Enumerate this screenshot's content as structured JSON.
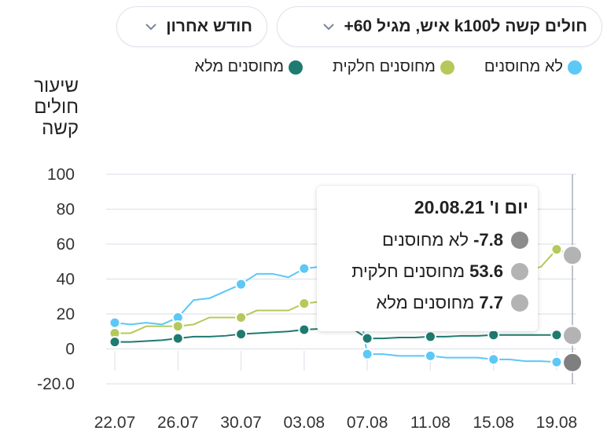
{
  "header": {
    "metric_dropdown": "חולים קשה לk100 איש, מגיל 60+",
    "period_dropdown": "חודש אחרון"
  },
  "colors": {
    "unvaccinated": "#5bc8f5",
    "partial": "#b5c95a",
    "full": "#1f7a70",
    "grid": "#dfe3ea"
  },
  "chart_data": {
    "type": "line",
    "ylabel": "שיעור\nחולים\nקשה",
    "xlabel": "",
    "ylim": [
      -20,
      100
    ],
    "y_ticks": [
      100,
      80,
      60,
      40,
      20,
      0,
      -20
    ],
    "y_tick_labels": [
      "100",
      "80",
      "60",
      "40",
      "20",
      "0",
      "-20.0"
    ],
    "x_tick_labels": [
      "22.07",
      "26.07",
      "30.07",
      "03.08",
      "07.08",
      "11.08",
      "15.08",
      "19.08"
    ],
    "x": [
      "22.07",
      "23.07",
      "24.07",
      "25.07",
      "26.07",
      "27.07",
      "28.07",
      "29.07",
      "30.07",
      "31.07",
      "01.08",
      "02.08",
      "03.08",
      "04.08",
      "05.08",
      "06.08",
      "07.08",
      "08.08",
      "09.08",
      "10.08",
      "11.08",
      "12.08",
      "13.08",
      "14.08",
      "15.08",
      "16.08",
      "17.08",
      "18.08",
      "19.08",
      "20.08"
    ],
    "marker_indices": [
      0,
      4,
      8,
      12,
      16,
      20,
      24,
      28
    ],
    "series": [
      {
        "name": "לא מחוסנים",
        "color": "#5bc8f5",
        "values": [
          15,
          14,
          15,
          14,
          18,
          28,
          29,
          33,
          37,
          43,
          43,
          41,
          46,
          47,
          49,
          49,
          -3,
          -3,
          -4,
          -4,
          -4,
          -5,
          -5,
          -5,
          -6,
          -6,
          -7,
          -7,
          -7.5,
          -7.8
        ]
      },
      {
        "name": "מחוסנים חלקית",
        "color": "#b5c95a",
        "values": [
          9,
          9,
          13,
          13,
          13,
          14,
          18,
          18,
          18,
          22,
          22,
          22,
          26,
          27,
          28,
          29,
          30,
          32,
          33,
          34,
          35,
          37,
          38,
          40,
          42,
          43,
          45,
          47,
          57,
          53.6
        ]
      },
      {
        "name": "מחוסנים מלא",
        "color": "#1f7a70",
        "values": [
          4,
          4,
          4.5,
          5,
          6,
          7,
          7,
          7.5,
          8.5,
          9,
          9.5,
          10,
          11,
          11.5,
          12,
          12,
          6,
          6,
          6.5,
          6.5,
          7,
          7,
          7.5,
          7.5,
          8,
          8,
          8,
          8,
          8,
          7.7
        ]
      }
    ]
  },
  "tooltip": {
    "title": "יום ו' 20.08.21",
    "rows": [
      {
        "value": "7.8-",
        "label": "לא מחוסנים",
        "color": "#8c8c8c"
      },
      {
        "value": "53.6",
        "label": "מחוסנים חלקית",
        "color": "#b3b3b3"
      },
      {
        "value": "7.7",
        "label": "מחוסנים מלא",
        "color": "#b3b3b3"
      }
    ]
  }
}
